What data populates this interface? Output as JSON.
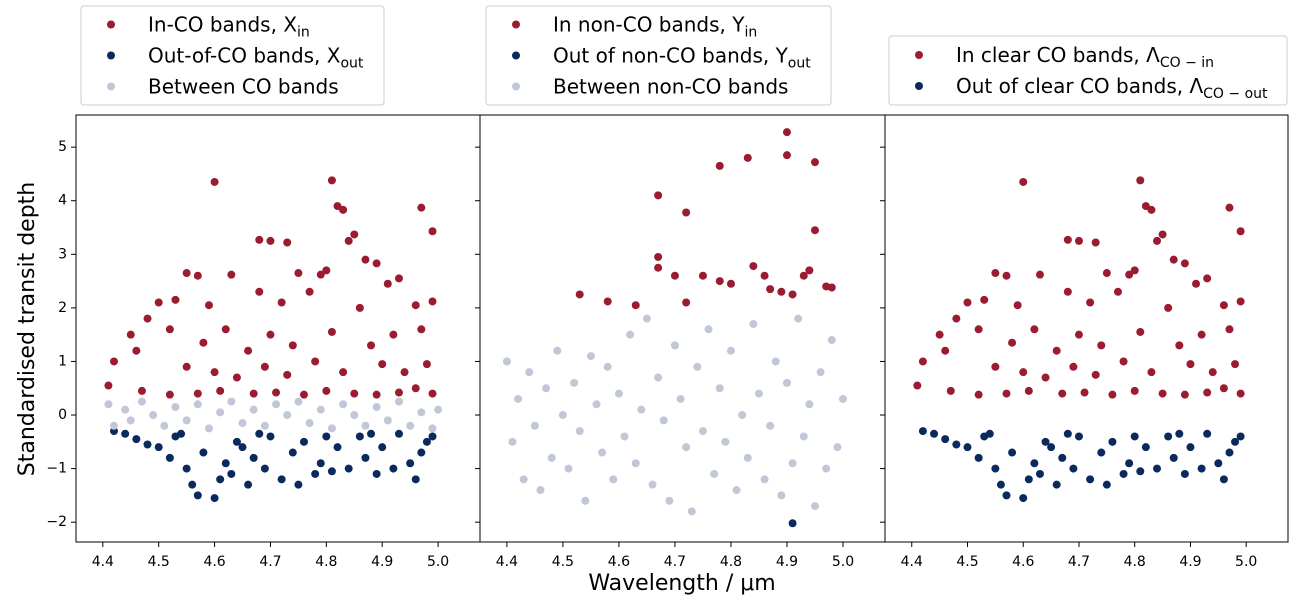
{
  "chart_data": [
    {
      "type": "scatter",
      "ylabel": "Standardised transit depth",
      "xlim": [
        4.352,
        5.075
      ],
      "ylim": [
        -2.37,
        5.6
      ],
      "xticks": [
        4.4,
        4.5,
        4.6,
        4.7,
        4.8,
        4.9,
        {
          "value": 5,
          "label": "5.0"
        }
      ],
      "yticks": [
        {
          "value": -2,
          "label": "−2"
        },
        {
          "value": -1,
          "label": "−1"
        },
        0,
        1,
        2,
        3,
        4,
        5
      ],
      "series": [
        {
          "name": "In-CO bands, X",
          "name_sub": "in",
          "color": "#9b1b30",
          "x": [
            4.6,
            4.81,
            4.82,
            4.83,
            4.97,
            4.99,
            4.68,
            4.7,
            4.73,
            4.85,
            4.84,
            4.87,
            4.89,
            4.55,
            4.57,
            4.63,
            4.75,
            4.79,
            4.8,
            4.91,
            4.93,
            4.5,
            4.53,
            4.59,
            4.68,
            4.72,
            4.77,
            4.86,
            4.96,
            4.99,
            4.45,
            4.48,
            4.52,
            4.58,
            4.62,
            4.66,
            4.7,
            4.74,
            4.81,
            4.88,
            4.92,
            4.97,
            4.42,
            4.46,
            4.55,
            4.6,
            4.64,
            4.69,
            4.73,
            4.78,
            4.83,
            4.9,
            4.94,
            4.98,
            4.41,
            4.47,
            4.52,
            4.57,
            4.61,
            4.67,
            4.71,
            4.76,
            4.8,
            4.85,
            4.89,
            4.93,
            4.96,
            4.99
          ],
          "y": [
            4.35,
            4.38,
            3.9,
            3.83,
            3.87,
            3.43,
            3.27,
            3.25,
            3.22,
            3.37,
            3.25,
            2.9,
            2.83,
            2.65,
            2.6,
            2.62,
            2.65,
            2.62,
            2.7,
            2.45,
            2.55,
            2.1,
            2.15,
            2.05,
            2.3,
            2.1,
            2.3,
            2.0,
            2.05,
            2.12,
            1.5,
            1.8,
            1.6,
            1.35,
            1.6,
            1.2,
            1.5,
            1.3,
            1.55,
            1.3,
            1.5,
            1.6,
            1.0,
            1.2,
            0.9,
            0.8,
            0.7,
            0.9,
            0.75,
            1.0,
            0.8,
            0.95,
            0.8,
            0.95,
            0.55,
            0.45,
            0.38,
            0.4,
            0.45,
            0.4,
            0.42,
            0.38,
            0.45,
            0.4,
            0.38,
            0.42,
            0.5,
            0.4
          ]
        },
        {
          "name": "Out-of-CO bands, X",
          "name_sub": "out",
          "color": "#0a2a5e",
          "x": [
            4.42,
            4.44,
            4.46,
            4.48,
            4.5,
            4.52,
            4.53,
            4.55,
            4.56,
            4.57,
            4.58,
            4.6,
            4.61,
            4.62,
            4.63,
            4.64,
            4.66,
            4.67,
            4.69,
            4.7,
            4.72,
            4.74,
            4.76,
            4.78,
            4.79,
            4.81,
            4.82,
            4.84,
            4.86,
            4.87,
            4.89,
            4.9,
            4.92,
            4.93,
            4.95,
            4.96,
            4.97,
            4.98,
            4.99,
            4.54,
            4.68,
            4.8,
            4.88,
            4.75,
            4.65
          ],
          "y": [
            -0.3,
            -0.35,
            -0.45,
            -0.55,
            -0.6,
            -0.8,
            -0.4,
            -1.0,
            -1.3,
            -1.5,
            -0.7,
            -1.55,
            -1.2,
            -0.9,
            -1.1,
            -0.5,
            -1.3,
            -0.8,
            -1.0,
            -0.4,
            -1.2,
            -0.7,
            -0.5,
            -1.1,
            -0.9,
            -1.05,
            -0.6,
            -1.0,
            -0.4,
            -0.8,
            -1.1,
            -0.6,
            -1.0,
            -0.35,
            -0.9,
            -1.2,
            -0.7,
            -0.5,
            -0.4,
            -0.35,
            -0.35,
            -0.4,
            -0.35,
            -1.3,
            -0.6
          ]
        },
        {
          "name": "Between CO bands",
          "color": "#c0c7d6",
          "x": [
            4.41,
            4.42,
            4.44,
            4.45,
            4.47,
            4.49,
            4.51,
            4.53,
            4.55,
            4.57,
            4.59,
            4.61,
            4.63,
            4.65,
            4.67,
            4.69,
            4.71,
            4.73,
            4.75,
            4.77,
            4.79,
            4.81,
            4.83,
            4.85,
            4.87,
            4.89,
            4.91,
            4.93,
            4.95,
            4.97,
            4.99,
            5.0
          ],
          "y": [
            0.2,
            -0.2,
            0.1,
            -0.1,
            0.25,
            0.0,
            -0.2,
            0.15,
            -0.1,
            0.2,
            -0.25,
            0.05,
            0.25,
            -0.15,
            0.1,
            -0.2,
            0.2,
            0.0,
            0.25,
            -0.15,
            0.1,
            -0.25,
            0.2,
            0.0,
            -0.2,
            0.15,
            -0.1,
            0.25,
            -0.2,
            0.05,
            -0.25,
            0.1
          ]
        }
      ]
    },
    {
      "type": "scatter",
      "xlabel": "Wavelength / μm",
      "xlim": [
        4.352,
        5.075
      ],
      "ylim": [
        -2.37,
        5.6
      ],
      "xticks": [
        4.4,
        4.5,
        4.6,
        4.7,
        4.8,
        4.9,
        {
          "value": 5,
          "label": "5.0"
        }
      ],
      "series": [
        {
          "name": "In non-CO bands, Y",
          "name_sub": "in",
          "color": "#9b1b30",
          "x": [
            4.53,
            4.58,
            4.63,
            4.67,
            4.67,
            4.67,
            4.7,
            4.72,
            4.72,
            4.75,
            4.78,
            4.78,
            4.8,
            4.83,
            4.84,
            4.86,
            4.87,
            4.89,
            4.9,
            4.9,
            4.91,
            4.93,
            4.94,
            4.95,
            4.95,
            4.97,
            4.98
          ],
          "y": [
            2.25,
            2.12,
            2.05,
            2.95,
            2.75,
            4.1,
            2.6,
            3.78,
            2.1,
            2.6,
            4.65,
            2.5,
            2.45,
            4.8,
            2.78,
            2.6,
            2.35,
            2.3,
            5.28,
            4.85,
            2.25,
            2.6,
            2.7,
            4.72,
            3.45,
            2.4,
            2.38
          ]
        },
        {
          "name": "Out of non-CO bands, Y",
          "name_sub": "out",
          "color": "#0a2a5e",
          "x": [
            4.91
          ],
          "y": [
            -2.02
          ]
        },
        {
          "name": "Between non-CO bands",
          "color": "#c0c7d6",
          "x": [
            4.4,
            4.41,
            4.42,
            4.43,
            4.44,
            4.45,
            4.46,
            4.47,
            4.48,
            4.49,
            4.5,
            4.51,
            4.52,
            4.53,
            4.54,
            4.55,
            4.56,
            4.57,
            4.58,
            4.59,
            4.6,
            4.61,
            4.62,
            4.63,
            4.64,
            4.65,
            4.66,
            4.67,
            4.68,
            4.69,
            4.7,
            4.71,
            4.72,
            4.73,
            4.74,
            4.75,
            4.76,
            4.77,
            4.78,
            4.79,
            4.8,
            4.81,
            4.82,
            4.83,
            4.84,
            4.85,
            4.86,
            4.87,
            4.88,
            4.89,
            4.9,
            4.91,
            4.92,
            4.93,
            4.94,
            4.95,
            4.96,
            4.97,
            4.98,
            4.99,
            5.0
          ],
          "y": [
            1.0,
            -0.5,
            0.3,
            -1.2,
            0.8,
            -0.2,
            -1.4,
            0.5,
            -0.8,
            1.2,
            0.0,
            -1.0,
            0.6,
            -0.3,
            -1.6,
            1.1,
            0.2,
            -0.7,
            0.9,
            -1.2,
            0.4,
            -0.4,
            1.5,
            -0.9,
            0.1,
            1.8,
            -1.3,
            0.7,
            -0.1,
            -1.6,
            1.3,
            0.3,
            -0.6,
            -1.8,
            0.9,
            -0.3,
            1.6,
            -1.1,
            0.5,
            -0.5,
            1.2,
            -1.4,
            0.0,
            -0.8,
            1.7,
            0.4,
            -1.2,
            -0.2,
            1.0,
            -1.5,
            0.6,
            -0.9,
            1.8,
            -0.4,
            0.2,
            -1.7,
            0.8,
            -1.0,
            1.4,
            -0.6,
            0.3
          ]
        }
      ]
    },
    {
      "type": "scatter",
      "xlim": [
        4.352,
        5.075
      ],
      "ylim": [
        -2.37,
        5.6
      ],
      "xticks": [
        4.4,
        4.5,
        4.6,
        4.7,
        4.8,
        4.9,
        {
          "value": 5,
          "label": "5.0"
        }
      ],
      "series": [
        {
          "name": "In clear CO bands, Λ",
          "name_sub": "CO − in",
          "color": "#9b1b30",
          "x": [
            4.6,
            4.81,
            4.82,
            4.83,
            4.97,
            4.99,
            4.68,
            4.7,
            4.73,
            4.85,
            4.84,
            4.87,
            4.89,
            4.55,
            4.57,
            4.63,
            4.75,
            4.79,
            4.8,
            4.91,
            4.93,
            4.5,
            4.53,
            4.59,
            4.68,
            4.72,
            4.77,
            4.86,
            4.96,
            4.99,
            4.45,
            4.48,
            4.52,
            4.58,
            4.62,
            4.66,
            4.7,
            4.74,
            4.81,
            4.88,
            4.92,
            4.97,
            4.42,
            4.46,
            4.55,
            4.6,
            4.64,
            4.69,
            4.73,
            4.78,
            4.83,
            4.9,
            4.94,
            4.98,
            4.41,
            4.47,
            4.52,
            4.57,
            4.61,
            4.67,
            4.71,
            4.76,
            4.8,
            4.85,
            4.89,
            4.93,
            4.96,
            4.99
          ],
          "y": [
            4.35,
            4.38,
            3.9,
            3.83,
            3.87,
            3.43,
            3.27,
            3.25,
            3.22,
            3.37,
            3.25,
            2.9,
            2.83,
            2.65,
            2.6,
            2.62,
            2.65,
            2.62,
            2.7,
            2.45,
            2.55,
            2.1,
            2.15,
            2.05,
            2.3,
            2.1,
            2.3,
            2.0,
            2.05,
            2.12,
            1.5,
            1.8,
            1.6,
            1.35,
            1.6,
            1.2,
            1.5,
            1.3,
            1.55,
            1.3,
            1.5,
            1.6,
            1.0,
            1.2,
            0.9,
            0.8,
            0.7,
            0.9,
            0.75,
            1.0,
            0.8,
            0.95,
            0.8,
            0.95,
            0.55,
            0.45,
            0.38,
            0.4,
            0.45,
            0.4,
            0.42,
            0.38,
            0.45,
            0.4,
            0.38,
            0.42,
            0.5,
            0.4
          ]
        },
        {
          "name": "Out of clear CO bands, Λ",
          "name_sub": "CO − out",
          "color": "#0a2a5e",
          "x": [
            4.42,
            4.44,
            4.46,
            4.48,
            4.5,
            4.52,
            4.53,
            4.55,
            4.56,
            4.57,
            4.58,
            4.6,
            4.61,
            4.62,
            4.63,
            4.64,
            4.66,
            4.67,
            4.69,
            4.7,
            4.72,
            4.74,
            4.76,
            4.78,
            4.79,
            4.81,
            4.82,
            4.84,
            4.86,
            4.87,
            4.89,
            4.9,
            4.92,
            4.93,
            4.95,
            4.96,
            4.97,
            4.98,
            4.99,
            4.54,
            4.68,
            4.8,
            4.88,
            4.75,
            4.65
          ],
          "y": [
            -0.3,
            -0.35,
            -0.45,
            -0.55,
            -0.6,
            -0.8,
            -0.4,
            -1.0,
            -1.3,
            -1.5,
            -0.7,
            -1.55,
            -1.2,
            -0.9,
            -1.1,
            -0.5,
            -1.3,
            -0.8,
            -1.0,
            -0.4,
            -1.2,
            -0.7,
            -0.5,
            -1.1,
            -0.9,
            -1.05,
            -0.6,
            -1.0,
            -0.4,
            -0.8,
            -1.1,
            -0.6,
            -1.0,
            -0.35,
            -0.9,
            -1.2,
            -0.7,
            -0.5,
            -0.4,
            -0.35,
            -0.35,
            -0.4,
            -0.35,
            -1.3,
            -0.6
          ]
        }
      ]
    }
  ]
}
